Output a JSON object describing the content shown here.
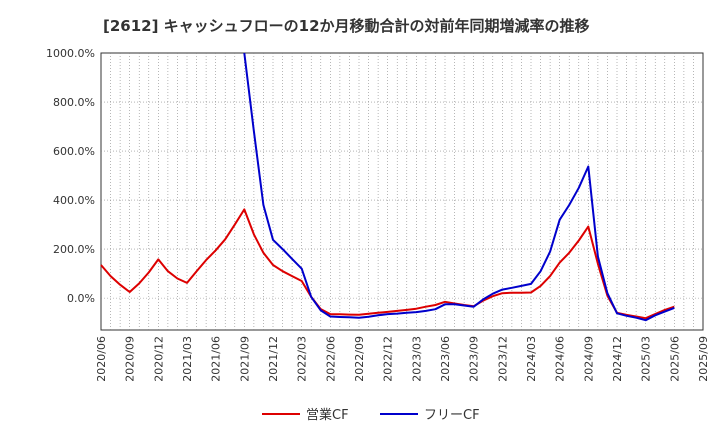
{
  "chart_data": {
    "type": "line",
    "title": "[2612]  キャッシュフローの12か月移動合計の対前年同期増減率の推移",
    "xlabel": "",
    "ylabel": "",
    "ylim": [
      -130,
      1000
    ],
    "yticks": [
      0,
      200,
      400,
      600,
      800,
      1000
    ],
    "ytick_labels": [
      "0.0%",
      "200.0%",
      "400.0%",
      "600.0%",
      "800.0%",
      "1000.0%"
    ],
    "x_start": "2020/06",
    "x_end": "2025/09",
    "x_tick_step_months": 3,
    "x_tick_labels": [
      "2020/06",
      "2020/09",
      "2020/12",
      "2021/03",
      "2021/06",
      "2021/09",
      "2021/12",
      "2022/03",
      "2022/06",
      "2022/09",
      "2022/12",
      "2023/03",
      "2023/06",
      "2023/09",
      "2023/12",
      "2024/03",
      "2024/06",
      "2024/09",
      "2024/12",
      "2025/03",
      "2025/06",
      "2025/09"
    ],
    "grid": true,
    "legend_position": "bottom",
    "series": [
      {
        "name": "営業CF",
        "color": "#dd0000",
        "points": [
          [
            "2020/06",
            135
          ],
          [
            "2020/07",
            90
          ],
          [
            "2020/08",
            55
          ],
          [
            "2020/09",
            25
          ],
          [
            "2020/10",
            60
          ],
          [
            "2020/11",
            105
          ],
          [
            "2020/12",
            158
          ],
          [
            "2021/01",
            110
          ],
          [
            "2021/02",
            80
          ],
          [
            "2021/03",
            62
          ],
          [
            "2021/04",
            110
          ],
          [
            "2021/05",
            155
          ],
          [
            "2021/06",
            195
          ],
          [
            "2021/07",
            240
          ],
          [
            "2021/08",
            300
          ],
          [
            "2021/09",
            362
          ],
          [
            "2021/10",
            260
          ],
          [
            "2021/11",
            185
          ],
          [
            "2021/12",
            135
          ],
          [
            "2022/01",
            110
          ],
          [
            "2022/02",
            90
          ],
          [
            "2022/03",
            70
          ],
          [
            "2022/04",
            5
          ],
          [
            "2022/05",
            -45
          ],
          [
            "2022/06",
            -65
          ],
          [
            "2022/07",
            -66
          ],
          [
            "2022/08",
            -67
          ],
          [
            "2022/09",
            -68
          ],
          [
            "2022/10",
            -64
          ],
          [
            "2022/11",
            -60
          ],
          [
            "2022/12",
            -56
          ],
          [
            "2023/01",
            -52
          ],
          [
            "2023/02",
            -48
          ],
          [
            "2023/03",
            -43
          ],
          [
            "2023/04",
            -35
          ],
          [
            "2023/05",
            -28
          ],
          [
            "2023/06",
            -15
          ],
          [
            "2023/07",
            -22
          ],
          [
            "2023/08",
            -28
          ],
          [
            "2023/09",
            -33
          ],
          [
            "2023/10",
            -10
          ],
          [
            "2023/11",
            8
          ],
          [
            "2023/12",
            20
          ],
          [
            "2024/01",
            22
          ],
          [
            "2024/02",
            22
          ],
          [
            "2024/03",
            23
          ],
          [
            "2024/04",
            50
          ],
          [
            "2024/05",
            90
          ],
          [
            "2024/06",
            145
          ],
          [
            "2024/07",
            185
          ],
          [
            "2024/08",
            235
          ],
          [
            "2024/09",
            292
          ],
          [
            "2024/10",
            140
          ],
          [
            "2024/11",
            10
          ],
          [
            "2024/12",
            -60
          ],
          [
            "2025/01",
            -68
          ],
          [
            "2025/02",
            -75
          ],
          [
            "2025/03",
            -82
          ],
          [
            "2025/04",
            -65
          ],
          [
            "2025/05",
            -48
          ],
          [
            "2025/06",
            -35
          ]
        ]
      },
      {
        "name": "フリーCF",
        "color": "#0000cc",
        "points": [
          [
            "2021/09",
            1000
          ],
          [
            "2021/10",
            680
          ],
          [
            "2021/11",
            380
          ],
          [
            "2021/12",
            238
          ],
          [
            "2022/01",
            200
          ],
          [
            "2022/02",
            160
          ],
          [
            "2022/03",
            120
          ],
          [
            "2022/04",
            5
          ],
          [
            "2022/05",
            -50
          ],
          [
            "2022/06",
            -75
          ],
          [
            "2022/07",
            -77
          ],
          [
            "2022/08",
            -78
          ],
          [
            "2022/09",
            -80
          ],
          [
            "2022/10",
            -76
          ],
          [
            "2022/11",
            -70
          ],
          [
            "2022/12",
            -65
          ],
          [
            "2023/01",
            -63
          ],
          [
            "2023/02",
            -60
          ],
          [
            "2023/03",
            -57
          ],
          [
            "2023/04",
            -52
          ],
          [
            "2023/05",
            -45
          ],
          [
            "2023/06",
            -25
          ],
          [
            "2023/07",
            -25
          ],
          [
            "2023/08",
            -30
          ],
          [
            "2023/09",
            -35
          ],
          [
            "2023/10",
            -5
          ],
          [
            "2023/11",
            18
          ],
          [
            "2023/12",
            35
          ],
          [
            "2024/01",
            42
          ],
          [
            "2024/02",
            50
          ],
          [
            "2024/03",
            58
          ],
          [
            "2024/04",
            110
          ],
          [
            "2024/05",
            190
          ],
          [
            "2024/06",
            320
          ],
          [
            "2024/07",
            380
          ],
          [
            "2024/08",
            450
          ],
          [
            "2024/09",
            537
          ],
          [
            "2024/10",
            170
          ],
          [
            "2024/11",
            20
          ],
          [
            "2024/12",
            -62
          ],
          [
            "2025/01",
            -72
          ],
          [
            "2025/02",
            -80
          ],
          [
            "2025/03",
            -90
          ],
          [
            "2025/04",
            -70
          ],
          [
            "2025/05",
            -55
          ],
          [
            "2025/06",
            -40
          ]
        ]
      }
    ]
  }
}
